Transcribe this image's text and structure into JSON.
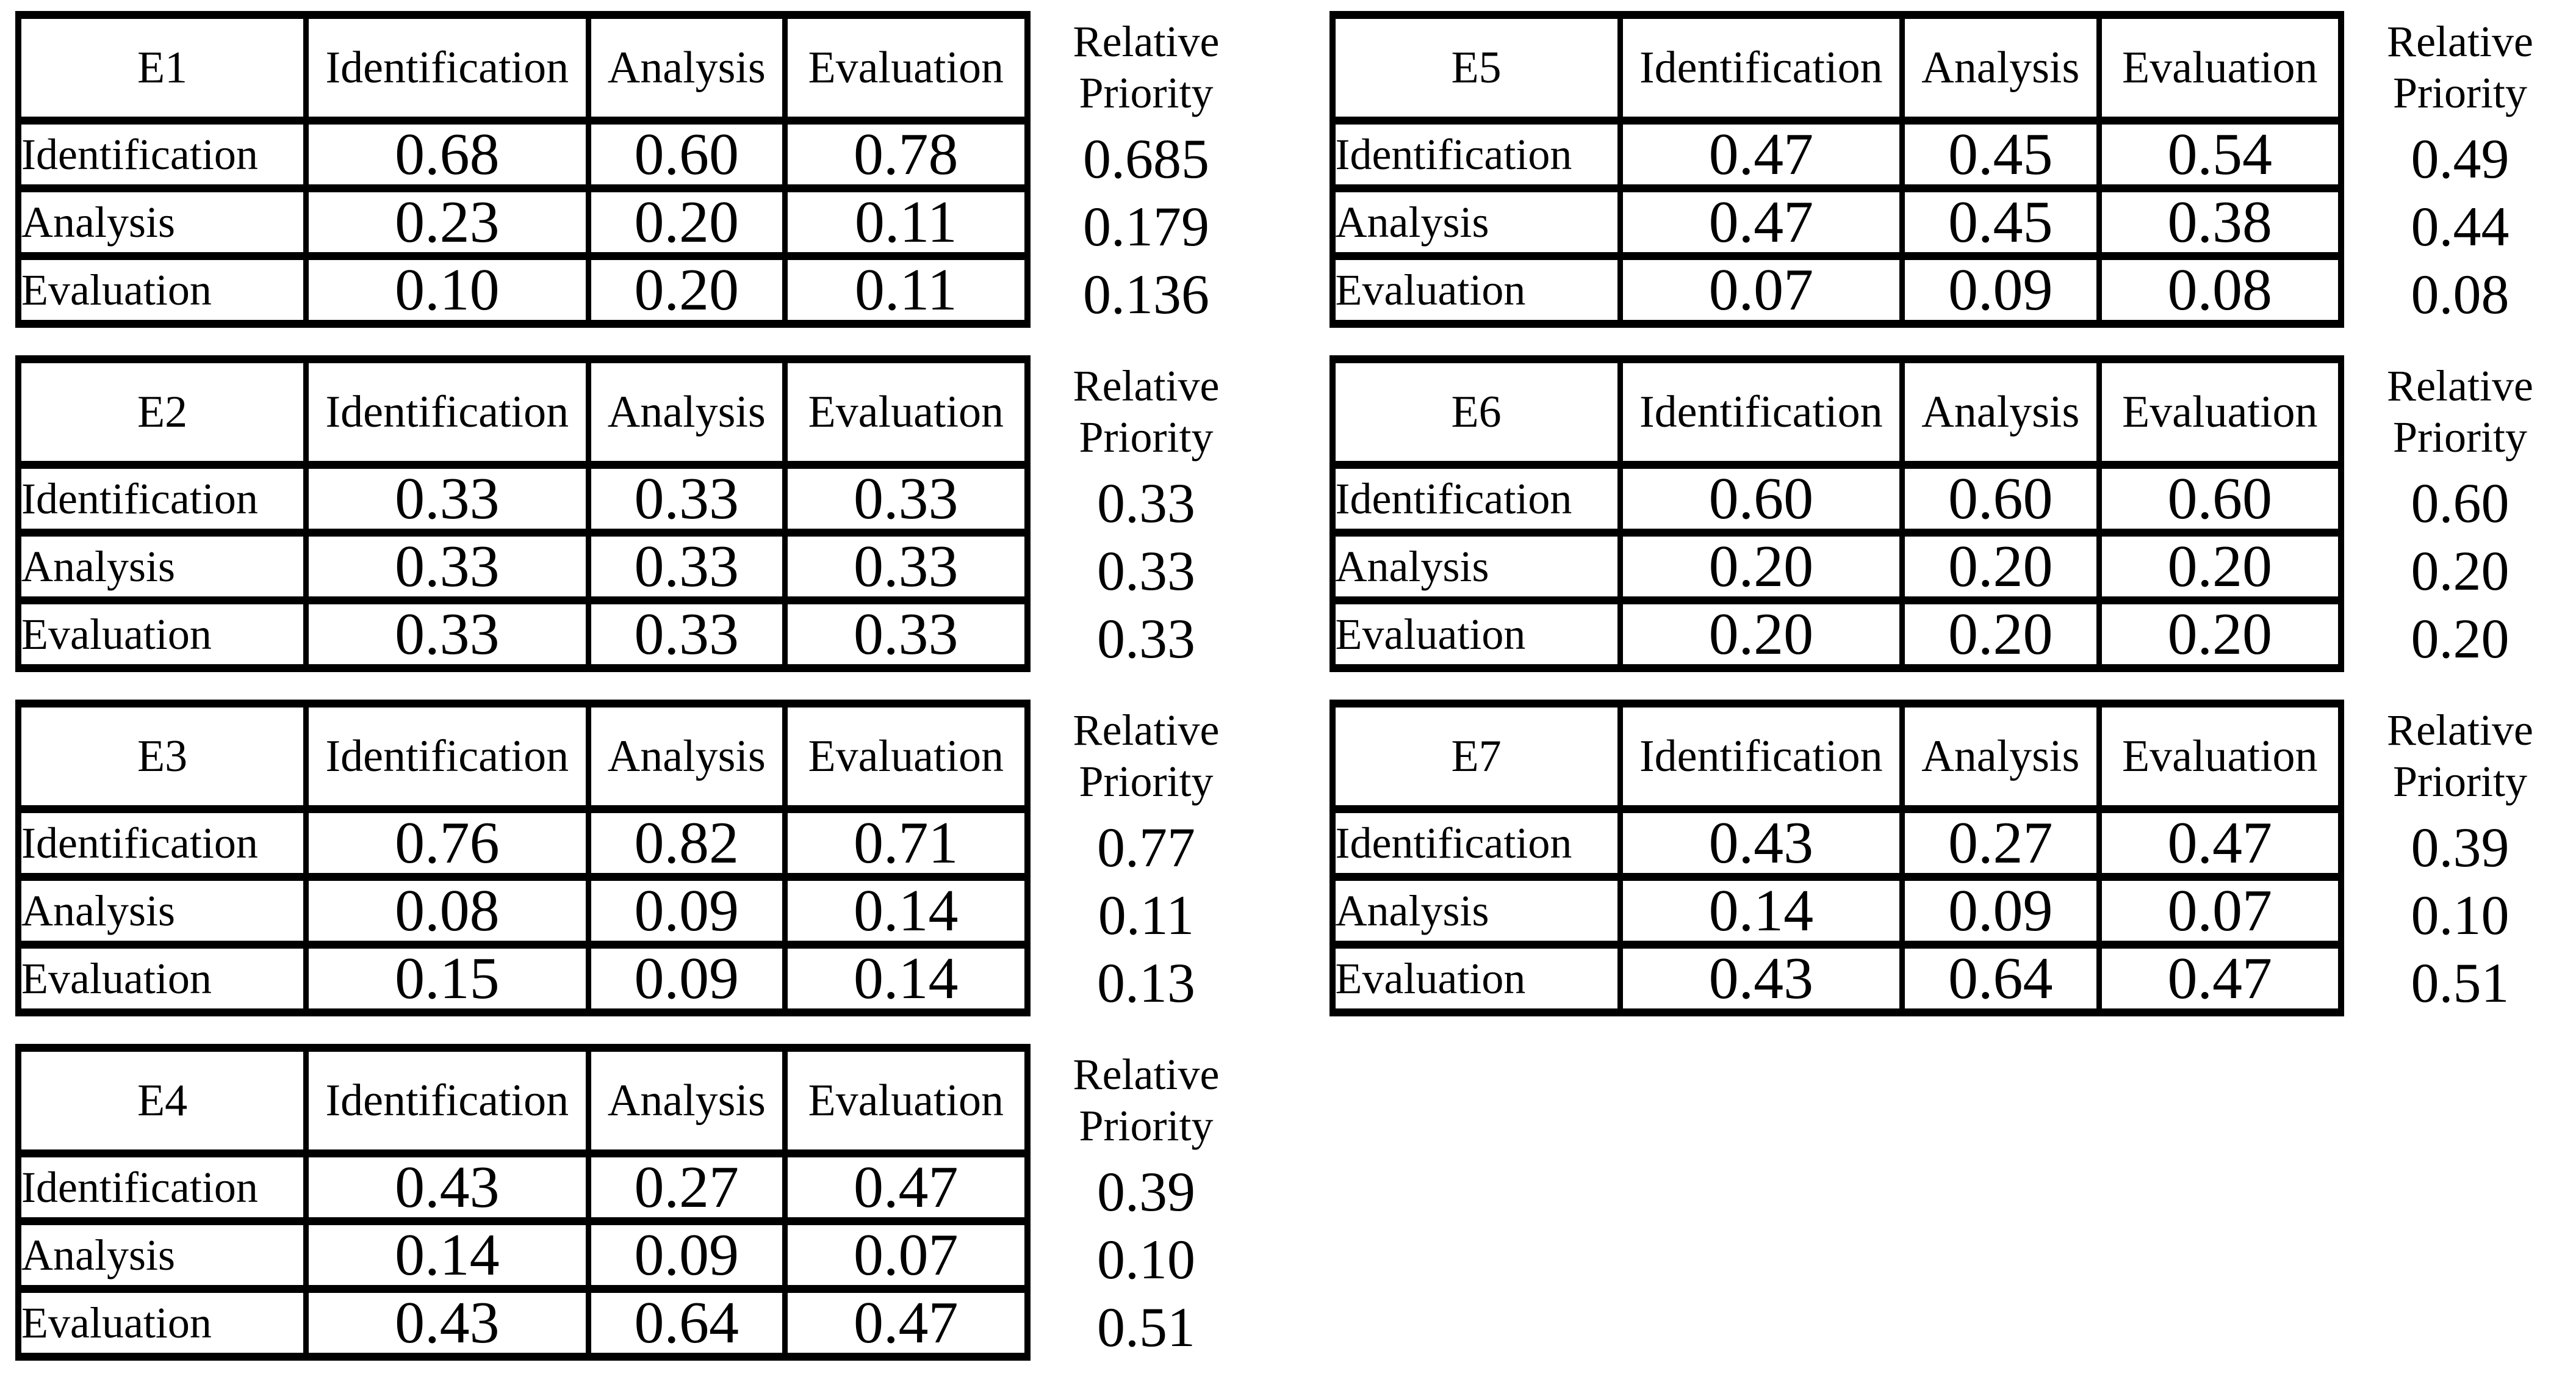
{
  "labels": {
    "relative_priority_line1": "Relative",
    "relative_priority_line2": "Priority",
    "col_headers": [
      "Identification",
      "Analysis",
      "Evaluation"
    ],
    "row_labels": [
      "Identification",
      "Analysis",
      "Evaluation"
    ]
  },
  "tables": [
    {
      "id": "E1",
      "cells": [
        [
          "0.68",
          "0.60",
          "0.78"
        ],
        [
          "0.23",
          "0.20",
          "0.11"
        ],
        [
          "0.10",
          "0.20",
          "0.11"
        ]
      ],
      "priorities": [
        "0.685",
        "0.179",
        "0.136"
      ]
    },
    {
      "id": "E2",
      "cells": [
        [
          "0.33",
          "0.33",
          "0.33"
        ],
        [
          "0.33",
          "0.33",
          "0.33"
        ],
        [
          "0.33",
          "0.33",
          "0.33"
        ]
      ],
      "priorities": [
        "0.33",
        "0.33",
        "0.33"
      ]
    },
    {
      "id": "E3",
      "cells": [
        [
          "0.76",
          "0.82",
          "0.71"
        ],
        [
          "0.08",
          "0.09",
          "0.14"
        ],
        [
          "0.15",
          "0.09",
          "0.14"
        ]
      ],
      "priorities": [
        "0.77",
        "0.11",
        "0.13"
      ]
    },
    {
      "id": "E4",
      "cells": [
        [
          "0.43",
          "0.27",
          "0.47"
        ],
        [
          "0.14",
          "0.09",
          "0.07"
        ],
        [
          "0.43",
          "0.64",
          "0.47"
        ]
      ],
      "priorities": [
        "0.39",
        "0.10",
        "0.51"
      ]
    },
    {
      "id": "E5",
      "cells": [
        [
          "0.47",
          "0.45",
          "0.54"
        ],
        [
          "0.47",
          "0.45",
          "0.38"
        ],
        [
          "0.07",
          "0.09",
          "0.08"
        ]
      ],
      "priorities": [
        "0.49",
        "0.44",
        "0.08"
      ]
    },
    {
      "id": "E6",
      "cells": [
        [
          "0.60",
          "0.60",
          "0.60"
        ],
        [
          "0.20",
          "0.20",
          "0.20"
        ],
        [
          "0.20",
          "0.20",
          "0.20"
        ]
      ],
      "priorities": [
        "0.60",
        "0.20",
        "0.20"
      ]
    },
    {
      "id": "E7",
      "cells": [
        [
          "0.43",
          "0.27",
          "0.47"
        ],
        [
          "0.14",
          "0.09",
          "0.07"
        ],
        [
          "0.43",
          "0.64",
          "0.47"
        ]
      ],
      "priorities": [
        "0.39",
        "0.10",
        "0.51"
      ]
    }
  ],
  "layout": {
    "left_column_ids": [
      "E1",
      "E2",
      "E3",
      "E4"
    ],
    "right_column_ids": [
      "E5",
      "E6",
      "E7"
    ]
  }
}
